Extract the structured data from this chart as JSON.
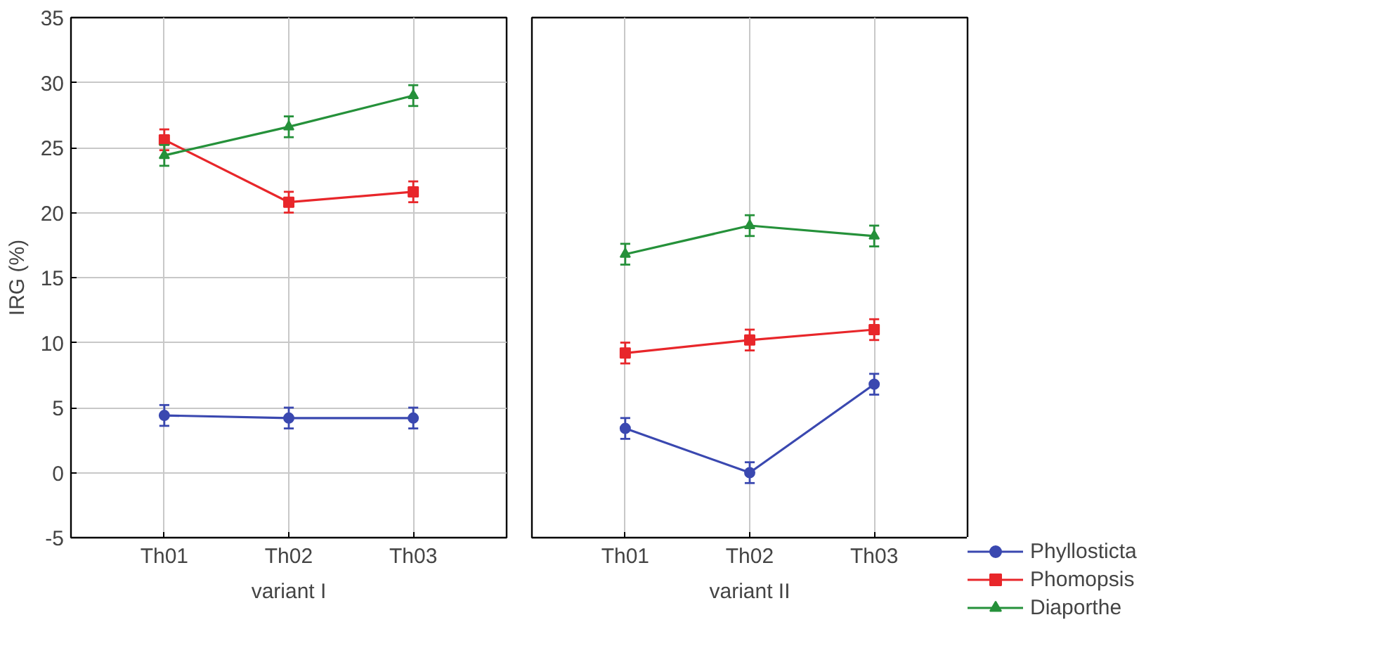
{
  "chart_data": [
    {
      "type": "line",
      "xlabel": "variant I",
      "ylabel": "IRG (%)",
      "categories": [
        "Th01",
        "Th02",
        "Th03"
      ],
      "ylim": [
        -5,
        35
      ],
      "yticks": [
        -5,
        0,
        5,
        10,
        15,
        20,
        25,
        30,
        35
      ],
      "grid": true,
      "series": [
        {
          "color": "#3a48b0",
          "marker": "circle",
          "values": [
            4.4,
            4.2,
            4.2
          ],
          "errors": [
            0.8,
            0.8,
            0.8
          ]
        },
        {
          "color": "#e8262a",
          "marker": "square",
          "values": [
            25.6,
            20.8,
            21.6
          ],
          "errors": [
            0.8,
            0.8,
            0.8
          ]
        },
        {
          "color": "#25913a",
          "marker": "triangle",
          "values": [
            24.4,
            26.6,
            29.0
          ],
          "errors": [
            0.8,
            0.8,
            0.8
          ]
        }
      ]
    },
    {
      "type": "line",
      "xlabel": "variant II",
      "categories": [
        "Th01",
        "Th02",
        "Th03"
      ],
      "ylim": [
        -5,
        35
      ],
      "tick_labels": "x",
      "grid": true,
      "legend": "bottom right",
      "series": [
        {
          "name": "Phyllosticta",
          "color": "#3a48b0",
          "marker": "circle",
          "values": [
            3.4,
            0.0,
            6.8
          ],
          "errors": [
            0.8,
            0.8,
            0.8
          ]
        },
        {
          "name": "Phomopsis",
          "color": "#e8262a",
          "marker": "square",
          "values": [
            9.2,
            10.2,
            11.0
          ],
          "errors": [
            0.8,
            0.8,
            0.8
          ]
        },
        {
          "name": "Diaporthe",
          "color": "#25913a",
          "marker": "triangle",
          "values": [
            16.8,
            19.0,
            18.2
          ],
          "errors": [
            0.8,
            0.8,
            0.8
          ]
        }
      ]
    }
  ]
}
